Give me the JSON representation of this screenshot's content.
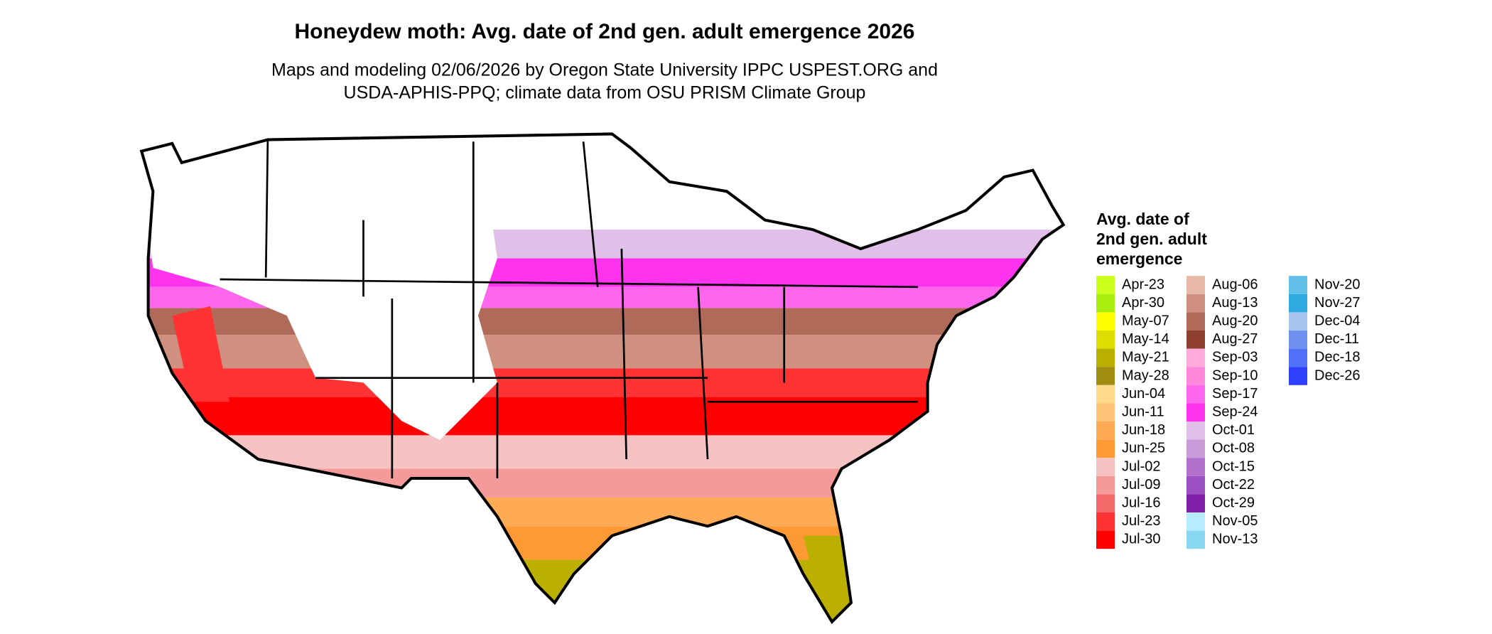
{
  "title": "Honeydew moth: Avg. date of 2nd gen. adult emergence 2026",
  "subtitle": [
    "Maps and modeling 02/06/2026 by Oregon State University IPPC USPEST.ORG and",
    "USDA-APHIS-PPQ; climate data from OSU PRISM Climate Group"
  ],
  "legend": {
    "title": [
      "Avg. date of",
      "2nd gen. adult",
      "emergence"
    ],
    "entries": [
      {
        "label": "Apr-23",
        "color": "#ccff1a"
      },
      {
        "label": "Apr-30",
        "color": "#a8ee10"
      },
      {
        "label": "May-07",
        "color": "#ffff00"
      },
      {
        "label": "May-14",
        "color": "#dddd00"
      },
      {
        "label": "May-21",
        "color": "#bbb000"
      },
      {
        "label": "May-28",
        "color": "#a08c10"
      },
      {
        "label": "Jun-04",
        "color": "#ffd98c"
      },
      {
        "label": "Jun-11",
        "color": "#ffc478"
      },
      {
        "label": "Jun-18",
        "color": "#ffaa55"
      },
      {
        "label": "Jun-25",
        "color": "#ff9933"
      },
      {
        "label": "Jul-02",
        "color": "#f5c2c2"
      },
      {
        "label": "Jul-09",
        "color": "#f59a9a"
      },
      {
        "label": "Jul-16",
        "color": "#f56a6a"
      },
      {
        "label": "Jul-23",
        "color": "#ff3333"
      },
      {
        "label": "Jul-30",
        "color": "#ff0000"
      },
      {
        "label": "Aug-06",
        "color": "#e8b8a8"
      },
      {
        "label": "Aug-13",
        "color": "#d09080"
      },
      {
        "label": "Aug-20",
        "color": "#b06a5a"
      },
      {
        "label": "Aug-27",
        "color": "#904030"
      },
      {
        "label": "Sep-03",
        "color": "#ffaadd"
      },
      {
        "label": "Sep-10",
        "color": "#ff88dd"
      },
      {
        "label": "Sep-17",
        "color": "#ff66ee"
      },
      {
        "label": "Sep-24",
        "color": "#ff33ee"
      },
      {
        "label": "Oct-01",
        "color": "#e0c0e8"
      },
      {
        "label": "Oct-08",
        "color": "#c89ad8"
      },
      {
        "label": "Oct-15",
        "color": "#b070cc"
      },
      {
        "label": "Oct-22",
        "color": "#9a50c0"
      },
      {
        "label": "Oct-29",
        "color": "#8020a8"
      },
      {
        "label": "Nov-05",
        "color": "#b8ecff"
      },
      {
        "label": "Nov-13",
        "color": "#88d8f4"
      },
      {
        "label": "Nov-20",
        "color": "#60c0e8"
      },
      {
        "label": "Nov-27",
        "color": "#30a8e0"
      },
      {
        "label": "Dec-04",
        "color": "#a8c4f0"
      },
      {
        "label": "Dec-11",
        "color": "#7090f0"
      },
      {
        "label": "Dec-18",
        "color": "#5070f8"
      },
      {
        "label": "Dec-26",
        "color": "#3040ff"
      }
    ]
  }
}
